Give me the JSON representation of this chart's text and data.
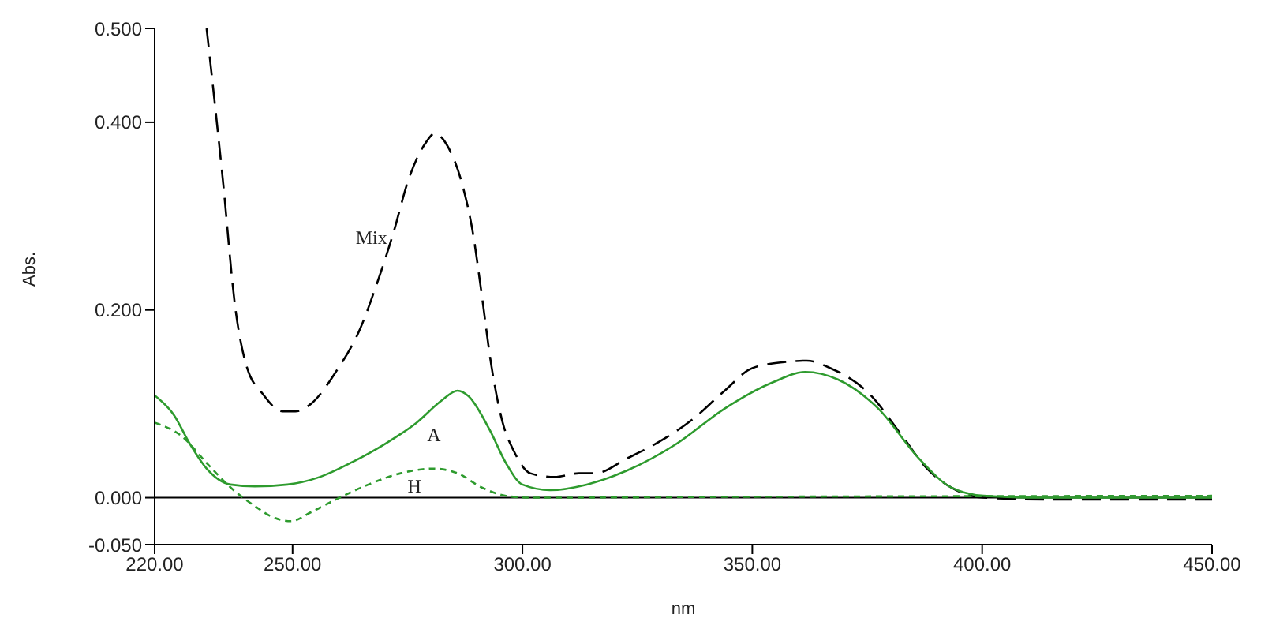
{
  "chart_data": {
    "type": "line",
    "xlabel": "nm",
    "ylabel": "Abs.",
    "xlim": [
      220,
      450
    ],
    "ylim": [
      -0.05,
      0.5
    ],
    "xticks": [
      {
        "value": 220,
        "label": "220.00"
      },
      {
        "value": 250,
        "label": "250.00"
      },
      {
        "value": 300,
        "label": "300.00"
      },
      {
        "value": 350,
        "label": "350.00"
      },
      {
        "value": 400,
        "label": "400.00"
      },
      {
        "value": 450,
        "label": "450.00"
      }
    ],
    "yticks": [
      {
        "value": -0.05,
        "label": "-0.050"
      },
      {
        "value": 0,
        "label": "0.000"
      },
      {
        "value": 0.2,
        "label": "0.200"
      },
      {
        "value": 0.4,
        "label": "0.400"
      },
      {
        "value": 0.5,
        "label": "0.500"
      }
    ],
    "grid": false,
    "legend": false,
    "marker": "none",
    "ref_lines": [
      {
        "axis": "y",
        "value": 0,
        "color": "#000000",
        "line_style": "solid"
      }
    ],
    "series": [
      {
        "name": "Mix",
        "color": "#000000",
        "line_style": "dashed",
        "x": [
          231.3,
          234.8,
          237.6,
          240,
          243.6,
          247.8,
          250.6,
          254,
          259.4,
          264.7,
          268.2,
          271.8,
          275.3,
          278.8,
          280.9,
          284,
          286.9,
          289.3,
          291.1,
          293.2,
          295.7,
          298.2,
          301.7,
          307,
          312.3,
          315.8,
          322.8,
          329.9,
          336.9,
          344,
          350,
          358,
          361.8,
          367,
          375.6,
          382.7,
          388,
          393.2,
          400.3,
          414,
          450
        ],
        "values": [
          0.5,
          0.34,
          0.2,
          0.14,
          0.11,
          0.092,
          0.092,
          0.1,
          0.134,
          0.18,
          0.226,
          0.28,
          0.34,
          0.377,
          0.388,
          0.372,
          0.334,
          0.28,
          0.218,
          0.142,
          0.08,
          0.049,
          0.026,
          0.022,
          0.026,
          0.026,
          0.042,
          0.06,
          0.083,
          0.114,
          0.138,
          0.145,
          0.146,
          0.138,
          0.11,
          0.065,
          0.031,
          0.011,
          0,
          -0.002,
          -0.002
        ]
      },
      {
        "name": "A",
        "color": "#2e9b2e",
        "line_style": "solid",
        "x": [
          220,
          224.2,
          227.7,
          231.3,
          236.5,
          241.8,
          248.9,
          255.9,
          263,
          270,
          277,
          282.3,
          285.9,
          288.3,
          292.9,
          296.4,
          300,
          306,
          314,
          322.8,
          333.4,
          344,
          354.5,
          361.5,
          368.6,
          377.4,
          386.2,
          393.2,
          400.3,
          414,
          450
        ],
        "values": [
          0.109,
          0.088,
          0.057,
          0.031,
          0.014,
          0.012,
          0.014,
          0.022,
          0.038,
          0.057,
          0.08,
          0.103,
          0.114,
          0.108,
          0.072,
          0.037,
          0.014,
          0.008,
          0.014,
          0.029,
          0.057,
          0.095,
          0.123,
          0.134,
          0.126,
          0.095,
          0.042,
          0.011,
          0.002,
          0,
          0
        ]
      },
      {
        "name": "H",
        "color": "#2e9b2e",
        "line_style": "dotted",
        "x": [
          220,
          226,
          231.3,
          236.5,
          241.8,
          245.4,
          249.6,
          254.2,
          259.4,
          266.5,
          273.5,
          280.6,
          285.9,
          291.1,
          296.4,
          301.7,
          350,
          450
        ],
        "values": [
          0.08,
          0.065,
          0.037,
          0.011,
          -0.009,
          -0.02,
          -0.025,
          -0.015,
          -0.002,
          0.014,
          0.026,
          0.031,
          0.026,
          0.011,
          0.002,
          0,
          0.001,
          0.002
        ]
      }
    ]
  }
}
